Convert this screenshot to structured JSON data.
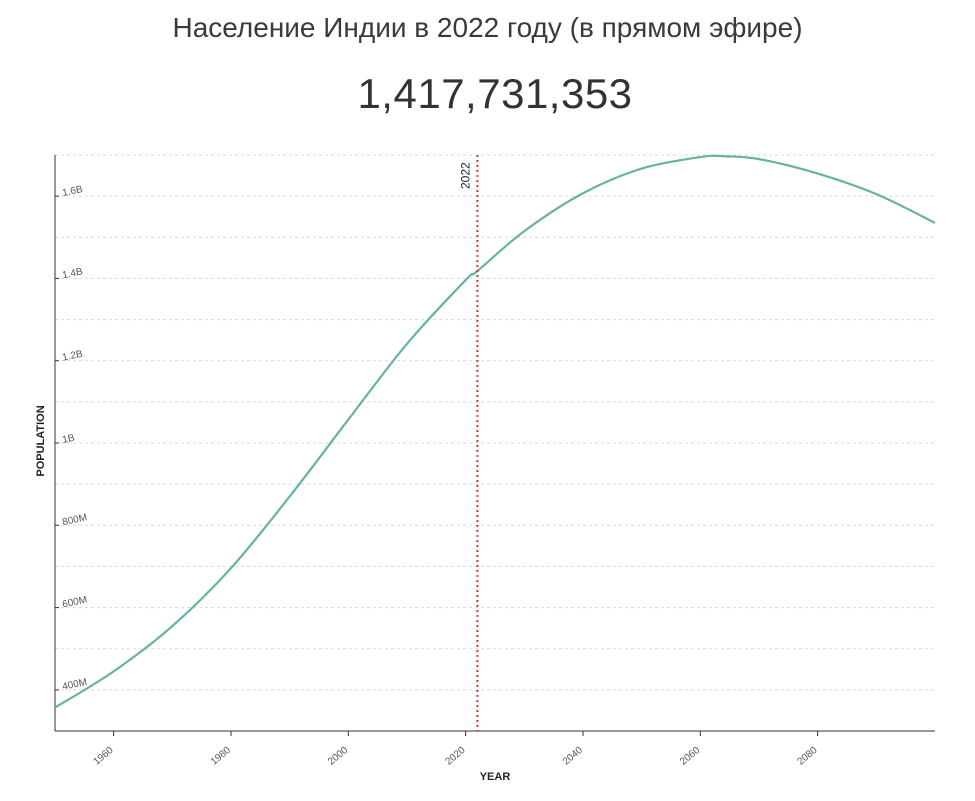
{
  "header": {
    "title": "Население Индии в 2022 году (в прямом эфире)",
    "counter": "1,417,731,353"
  },
  "chart_data": {
    "type": "line",
    "xlabel": "YEAR",
    "ylabel": "POPULATION",
    "xlim": [
      1950,
      2100
    ],
    "ylim": [
      300000000,
      1700000000
    ],
    "x_ticks": [
      1960,
      1980,
      2000,
      2020,
      2040,
      2060,
      2080
    ],
    "x_tick_labels": [
      "1960",
      "1980",
      "2000",
      "2020",
      "2040",
      "2060",
      "2080"
    ],
    "y_ticks": [
      400000000,
      600000000,
      800000000,
      1000000000,
      1200000000,
      1400000000,
      1600000000
    ],
    "y_tick_labels": [
      "400M",
      "600M",
      "800M",
      "1B",
      "1.2B",
      "1.4B",
      "1.6B"
    ],
    "grid": true,
    "line_color": "#66b3a0",
    "marker_color": "#e03131",
    "marker": {
      "x": 2022,
      "label": "2022"
    },
    "series": [
      {
        "x": [
          1950,
          1960,
          1970,
          1980,
          1990,
          2000,
          2010,
          2020,
          2022,
          2030,
          2040,
          2050,
          2060,
          2064,
          2070,
          2080,
          2090,
          2100
        ],
        "values": [
          357000000,
          445000000,
          555000000,
          696000000,
          870000000,
          1057000000,
          1241000000,
          1396000000,
          1418000000,
          1515000000,
          1607000000,
          1667000000,
          1695000000,
          1697000000,
          1690000000,
          1655000000,
          1605000000,
          1535000000
        ]
      }
    ]
  }
}
